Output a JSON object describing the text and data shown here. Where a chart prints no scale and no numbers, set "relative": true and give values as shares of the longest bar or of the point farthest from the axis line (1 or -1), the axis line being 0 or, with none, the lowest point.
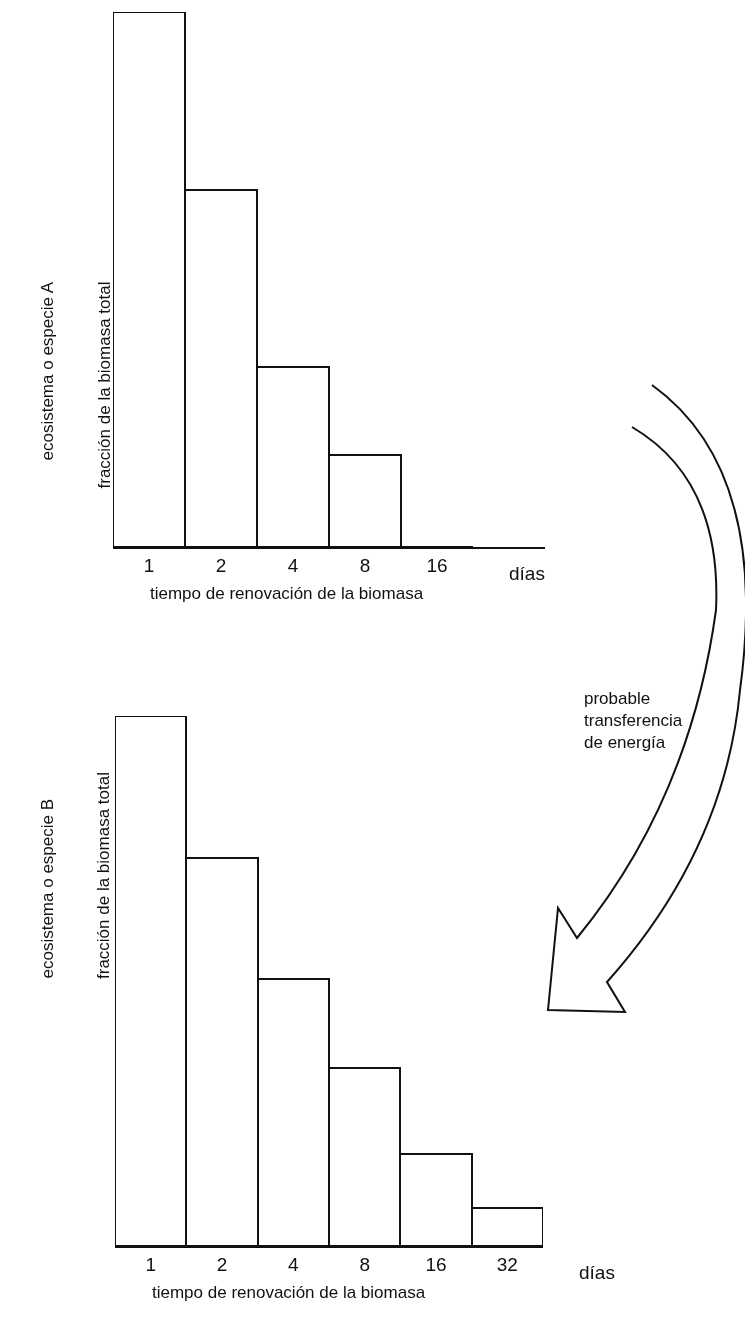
{
  "chart_data": [
    {
      "type": "bar",
      "title": "ecosistema o especie A",
      "ylabel": "fracción de la biomasa total",
      "xlabel": "tiempo de renovación de la biomasa",
      "categories": [
        "1",
        "2",
        "4",
        "8",
        "16"
      ],
      "values": [
        1,
        0.667,
        0.336,
        0.172,
        0
      ],
      "color": "#ffffff",
      "relative": true,
      "annotations": [
        "días"
      ]
    },
    {
      "type": "bar",
      "title": "ecosistema o especie B",
      "ylabel": "fracción de la biomasa total",
      "xlabel": "tiempo de renovación de la biomasa",
      "categories": [
        "1",
        "2",
        "4",
        "8",
        "16",
        "32"
      ],
      "values": [
        1,
        0.732,
        0.504,
        0.336,
        0.174,
        0.072
      ],
      "color": "#ffffff",
      "relative": true,
      "annotations": [
        "días",
        "probable\ntransferencia\nde energía"
      ]
    }
  ]
}
